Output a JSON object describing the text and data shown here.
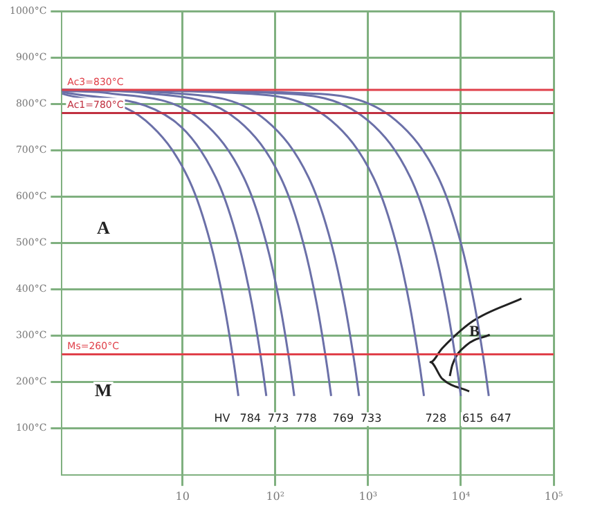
{
  "chart_data": {
    "type": "line",
    "xlim": [
      0.5,
      100000
    ],
    "xticks": [
      {
        "value": 10,
        "label": "10"
      },
      {
        "value": 100,
        "label": "10²"
      },
      {
        "value": 1000,
        "label": "10³"
      },
      {
        "value": 10000,
        "label": "10⁴"
      },
      {
        "value": 100000,
        "label": "10⁵"
      }
    ],
    "ylim": [
      0,
      1000
    ],
    "yticks": [
      {
        "value": 100,
        "label": "100°C"
      },
      {
        "value": 200,
        "label": "200°C"
      },
      {
        "value": 300,
        "label": "300°C"
      },
      {
        "value": 400,
        "label": "400°C"
      },
      {
        "value": 500,
        "label": "500°C"
      },
      {
        "value": 600,
        "label": "600°C"
      },
      {
        "value": 700,
        "label": "700°C"
      },
      {
        "value": 800,
        "label": "800°C"
      },
      {
        "value": 900,
        "label": "900°C"
      },
      {
        "value": 1000,
        "label": "1000°C"
      }
    ],
    "log": "x",
    "grid": true,
    "legend": false,
    "marker": "none",
    "line_style": "solid",
    "series": [
      {
        "color": "#6b70a8",
        "x": [
          0.5,
          4,
          12,
          20,
          28,
          36,
          40
        ],
        "values": [
          822,
          764,
          632,
          500,
          368,
          236,
          170
        ]
      },
      {
        "color": "#6b70a8",
        "x": [
          0.5,
          8,
          24,
          40,
          56,
          72,
          80
        ],
        "values": [
          826,
          764,
          632,
          500,
          368,
          236,
          170
        ]
      },
      {
        "color": "#6b70a8",
        "x": [
          0.5,
          1.6,
          16,
          48,
          80,
          112,
          144,
          160
        ],
        "values": [
          828,
          823,
          764,
          632,
          500,
          368,
          236,
          170
        ]
      },
      {
        "color": "#6b70a8",
        "x": [
          0.5,
          4,
          40,
          120,
          200,
          280,
          360,
          400
        ],
        "values": [
          830,
          823,
          764,
          632,
          500,
          368,
          236,
          170
        ]
      },
      {
        "color": "#6b70a8",
        "x": [
          0.5,
          8,
          80,
          240,
          400,
          560,
          720,
          800
        ],
        "values": [
          830,
          823,
          764,
          632,
          500,
          368,
          236,
          170
        ]
      },
      {
        "color": "#6b70a8",
        "x": [
          0.5,
          40,
          400,
          1200,
          2000,
          2800,
          3600,
          4000
        ],
        "values": [
          830,
          823,
          764,
          632,
          500,
          368,
          236,
          170
        ]
      },
      {
        "color": "#6b70a8",
        "x": [
          0.5,
          100,
          1000,
          3000,
          5000,
          7000,
          9000,
          10000
        ],
        "values": [
          830,
          823,
          764,
          632,
          500,
          368,
          236,
          170
        ]
      },
      {
        "color": "#6b70a8",
        "x": [
          0.5,
          200,
          2000,
          6000,
          10000,
          14000,
          18000,
          20000
        ],
        "values": [
          830,
          823,
          764,
          632,
          500,
          368,
          236,
          170
        ]
      },
      {
        "color": "#222222",
        "x": [
          45000,
          13600,
          6300,
          4700,
          6300,
          12300
        ],
        "values": [
          380,
          332,
          273,
          243,
          207,
          180
        ]
      },
      {
        "color": "#222222",
        "x": [
          20500,
          11400,
          8100,
          7600
        ],
        "values": [
          302,
          279,
          237,
          213
        ]
      }
    ],
    "ref_lines": [
      {
        "axis": "y",
        "value": 830,
        "label": "Ac3=830°C",
        "color": "#e0404a"
      },
      {
        "axis": "y",
        "value": 780,
        "label": "Ac1=780°C",
        "color": "#c03040"
      },
      {
        "axis": "y",
        "value": 260,
        "label": "Ms=260°C",
        "color": "#e0404a"
      }
    ],
    "annotations": [
      "A",
      "M",
      "B",
      "HV",
      "784",
      "773",
      "778",
      "769",
      "733",
      "728",
      "615",
      "647"
    ]
  }
}
